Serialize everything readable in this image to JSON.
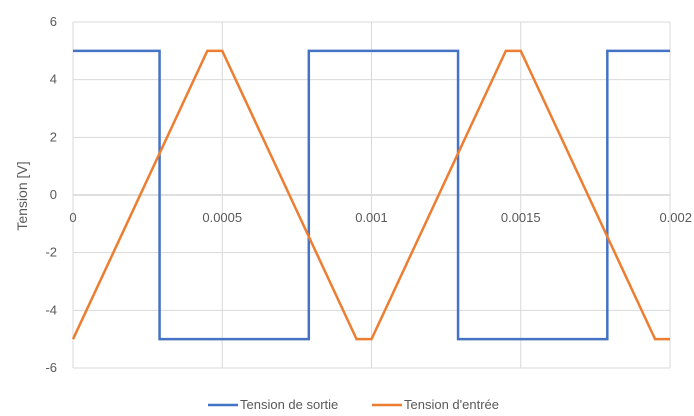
{
  "chart_data": {
    "type": "line",
    "title": "",
    "xlabel": "",
    "ylabel": "Tension [V]",
    "xlim": [
      0,
      0.002
    ],
    "ylim": [
      -6,
      6
    ],
    "x_ticks": [
      "0",
      "0.0005",
      "0.001",
      "0.0015",
      "0.002"
    ],
    "x_tick_values": [
      0,
      0.0005,
      0.001,
      0.0015,
      0.002
    ],
    "y_ticks": [
      "6",
      "4",
      "2",
      "0",
      "-2",
      "-4",
      "-6"
    ],
    "y_tick_values": [
      6,
      4,
      2,
      0,
      -2,
      -4,
      -6
    ],
    "grid": true,
    "legend_position": "bottom",
    "series": [
      {
        "name": "Tension de sortie",
        "color": "#4472C4",
        "x": [
          0,
          0.00029,
          0.00029,
          0.00079,
          0.00079,
          0.00129,
          0.00129,
          0.00179,
          0.00179,
          0.002
        ],
        "y": [
          5,
          5,
          -5,
          -5,
          5,
          5,
          -5,
          -5,
          5,
          5
        ]
      },
      {
        "name": "Tension d'entrée",
        "color": "#ED7D31",
        "x": [
          0,
          0.00045,
          0.0005,
          0.00095,
          0.001,
          0.00145,
          0.0015,
          0.00195,
          0.002
        ],
        "y": [
          -5,
          5,
          5,
          -5,
          -5,
          5,
          5,
          -5,
          -5
        ]
      }
    ]
  }
}
